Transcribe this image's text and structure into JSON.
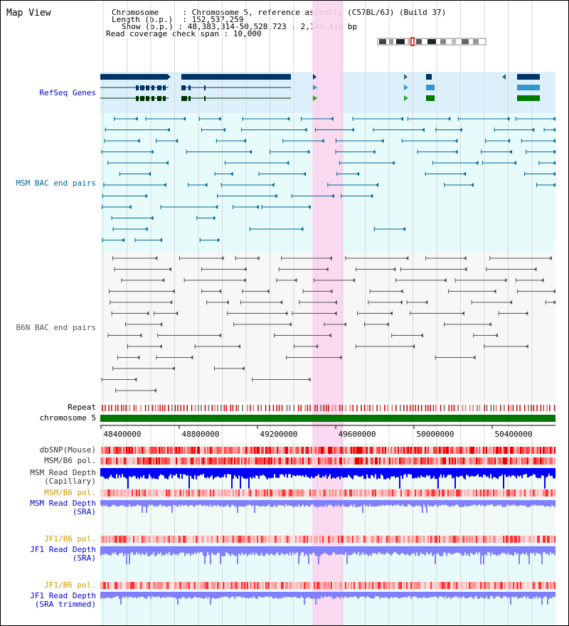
{
  "page": {
    "title": "Map View",
    "info": [
      {
        "key": "Chromosome",
        "value": "Chromosome 5, reference assembly (C57BL/6J) (Build 37)"
      },
      {
        "key": "Length (b.p.)",
        "value": "152,537,259"
      },
      {
        "key": "Show (b.p.)",
        "value": "48,383,314-50,528,723 : 2,145,410 bp"
      },
      {
        "key": "Read coverage check span",
        "value": "10,000"
      }
    ]
  },
  "tracks": {
    "refseq": "RefSeq Genes",
    "msm_bac": "MSM BAC end pairs",
    "b6n_bac": "B6N BAC end pairs",
    "repeat": "Repeat",
    "chromosome": "chromosome 5",
    "dbsnp": "dbSNP(Mouse)",
    "msm_b6_pol_1": "MSM/B6 pol.",
    "msm_depth_cap": [
      "MSM Read Depth",
      "(Capillary)"
    ],
    "msm_b6_pol_2": "MSM/B6 pol.",
    "msm_depth_sra": [
      "MSM Read Depth",
      "(SRA)"
    ],
    "jf1_b6_pol_1": "JF1/B6 pol.",
    "jf1_depth_sra": [
      "JF1 Read Depth",
      "(SRA)"
    ],
    "jf1_b6_pol_2": "JF1/B6 pol.",
    "jf1_depth_trim": [
      "JF1 Read Depth",
      "(SRA trimmed)"
    ]
  },
  "axis": {
    "ticks": [
      "48400000",
      "48800000",
      "49200000",
      "49600000",
      "50000000",
      "50400000"
    ]
  },
  "colors": {
    "refseq_bg": "#dcf0fb",
    "msm_bg": "#e8fbfb",
    "b6n_bg": "#f7f7f7",
    "highlight": "#fbd6f0",
    "label_blue": "#0000cc",
    "label_teal": "#006699",
    "label_gray": "#555555",
    "label_orange": "#cc9900",
    "depth_dark": "#0000ff",
    "depth_light": "#8080ff",
    "chrom_green": "#007700"
  }
}
